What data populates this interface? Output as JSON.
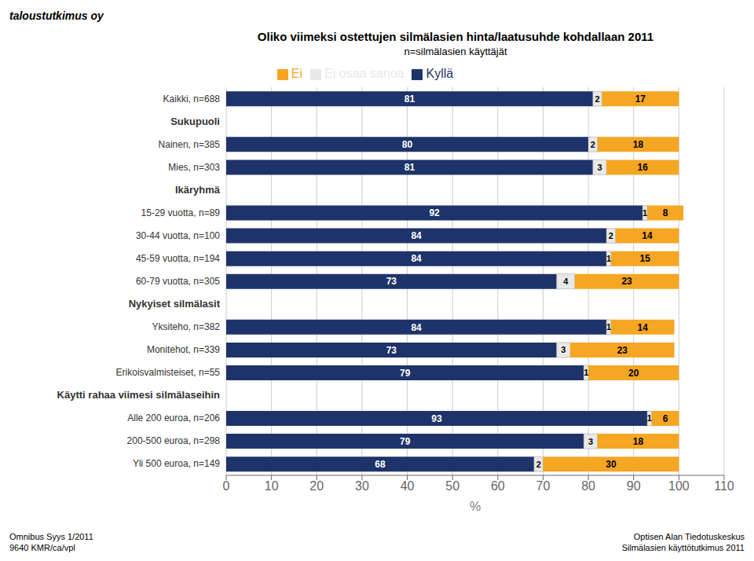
{
  "chart_data": {
    "type": "bar",
    "orientation": "horizontal",
    "stacked": true,
    "data_labels": true,
    "grid": true,
    "legend": "top",
    "title": "Oliko viimeksi ostettujen silmälasien hinta/laatusuhde kohdallaan 2011",
    "subtitle": "n=silmälasien käyttäjät",
    "xlabel": "%",
    "annotations": [
      "taloustutkimus oy",
      "Omnibus Syys 1/2011",
      "9640 KMR/ca/vpl",
      "Optisen Alan Tiedotuskeskus",
      "Silmälasien käyttötutkimus 2011"
    ],
    "categories": [
      "Kaikki, n=688",
      "Sukupuoli",
      "Nainen, n=385",
      "Mies, n=303",
      "Ikäryhmä",
      "15-29 vuotta, n=89",
      "30-44 vuotta, n=100",
      "45-59 vuotta, n=194",
      "60-79 vuotta, n=305",
      "Nykyiset silmälasit",
      "Yksiteho, n=382",
      "Monitehot, n=339",
      "Erikoisvalmisteiset, n=55",
      "Käytti rahaa viimesi silmälaseihin",
      "Alle 200 euroa, n=206",
      "200-500 euroa, n=298",
      "Yli 500 euroa, n=149"
    ],
    "series": [
      {
        "name": "Kyllä",
        "color": "#1e3369",
        "values": [
          81,
          null,
          80,
          81,
          null,
          92,
          84,
          84,
          73,
          null,
          84,
          73,
          79,
          null,
          93,
          79,
          68
        ]
      },
      {
        "name": "Ei osaa sanoa",
        "color": "#e8e8e8",
        "values": [
          2,
          null,
          2,
          3,
          null,
          1,
          2,
          1,
          4,
          null,
          1,
          3,
          1,
          null,
          1,
          3,
          2
        ]
      },
      {
        "name": "Ei",
        "color": "#f5a623",
        "values": [
          17,
          null,
          18,
          16,
          null,
          8,
          14,
          15,
          23,
          null,
          14,
          23,
          20,
          null,
          6,
          18,
          30
        ]
      }
    ],
    "xlim": [
      0,
      110
    ],
    "xticks": [
      0,
      10,
      20,
      30,
      40,
      50,
      60,
      70,
      80,
      90,
      100,
      110
    ]
  }
}
